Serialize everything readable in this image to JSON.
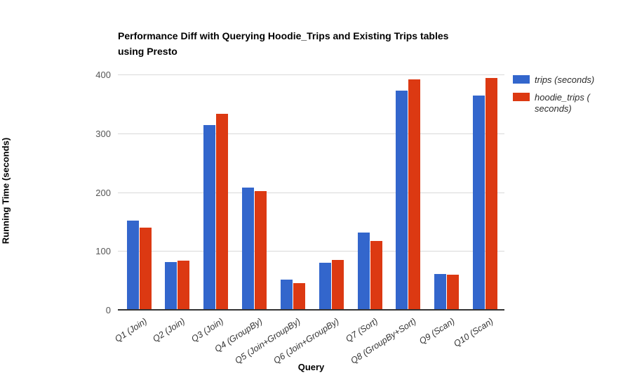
{
  "title": {
    "line1": "Performance Diff with Querying Hoodie_Trips and Existing Trips tables",
    "line2": "using Presto"
  },
  "axes": {
    "y_title": "Running Time (seconds)",
    "x_title": "Query",
    "y_tick_labels": [
      "0",
      "100",
      "200",
      "300",
      "400"
    ]
  },
  "legend": [
    {
      "color": "#3366cc",
      "lines": [
        "trips (seconds)"
      ]
    },
    {
      "color": "#dc3912",
      "lines": [
        "hoodie_trips (",
        "seconds)"
      ]
    }
  ],
  "colors": {
    "series_blue": "#3366cc",
    "series_red": "#dc3912",
    "gridline": "#d9d9d9",
    "axis_line": "#333333"
  },
  "chart_data": {
    "type": "bar",
    "title": "Performance Diff with Querying Hoodie_Trips and Existing Trips tables using Presto",
    "categories": [
      "Q1 (Join)",
      "Q2 (Join)",
      "Q3 (Join)",
      "Q4 (GroupBy)",
      "Q5 (Join+GroupBy)",
      "Q6 (Join+GroupBy)",
      "Q7 (Sort)",
      "Q8 (GroupBy+Sort)",
      "Q9 (Scan)",
      "Q10 (Scan)"
    ],
    "series": [
      {
        "name": "trips (seconds)",
        "color": "#3366cc",
        "values": [
          150,
          80,
          313,
          207,
          50,
          79,
          130,
          371,
          60,
          363
        ]
      },
      {
        "name": "hoodie_trips (seconds)",
        "color": "#dc3912",
        "values": [
          139,
          83,
          332,
          201,
          44,
          84,
          116,
          390,
          59,
          393
        ]
      }
    ],
    "xlabel": "Query",
    "ylabel": "Running Time (seconds)",
    "ylim": [
      0,
      400
    ],
    "yticks": [
      0,
      100,
      200,
      300,
      400
    ],
    "grid": true,
    "legend_position": "right"
  }
}
